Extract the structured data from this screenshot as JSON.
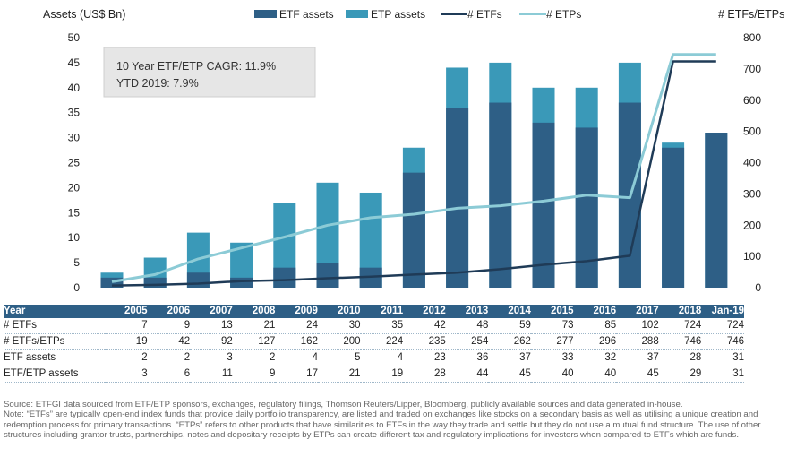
{
  "chart_data": {
    "type": "bar",
    "categories": [
      "2005",
      "2006",
      "2007",
      "2008",
      "2009",
      "2010",
      "2011",
      "2012",
      "2013",
      "2014",
      "2015",
      "2016",
      "2017",
      "2018",
      "Jan-19"
    ],
    "series": [
      {
        "name": "ETF assets",
        "kind": "bar",
        "axis": "left",
        "color": "#2e5f86",
        "values": [
          2,
          2,
          3,
          2,
          4,
          5,
          4,
          23,
          36,
          37,
          33,
          32,
          37,
          28,
          31
        ]
      },
      {
        "name": "ETP assets",
        "kind": "bar",
        "axis": "left",
        "color": "#3a99b8",
        "values": [
          3,
          6,
          11,
          9,
          17,
          21,
          19,
          28,
          44,
          45,
          40,
          40,
          45,
          29,
          31
        ]
      },
      {
        "name": "# ETFs",
        "kind": "line",
        "axis": "right",
        "color": "#1f3b57",
        "values": [
          7,
          9,
          13,
          21,
          24,
          30,
          35,
          42,
          48,
          59,
          73,
          85,
          102,
          724,
          724
        ]
      },
      {
        "name": "# ETPs",
        "kind": "line",
        "axis": "right",
        "color": "#8ccbd6",
        "values": [
          19,
          42,
          92,
          127,
          162,
          200,
          224,
          235,
          254,
          262,
          277,
          296,
          288,
          746,
          746
        ]
      }
    ],
    "ylabel": "Assets (US$ Bn)",
    "y2label": "# ETFs/ETPs",
    "ylim": [
      0,
      50
    ],
    "y2lim": [
      0,
      800
    ],
    "yticks": [
      0,
      5,
      10,
      15,
      20,
      25,
      30,
      35,
      40,
      45,
      50
    ],
    "y2ticks": [
      0,
      100,
      200,
      300,
      400,
      500,
      600,
      700,
      800
    ],
    "legend_position": "top",
    "grid": false,
    "annotation": [
      "10 Year ETF/ETP CAGR: 11.9%",
      "YTD 2019: 7.9%"
    ]
  },
  "table": {
    "header_label": "Year",
    "rows": [
      {
        "label": "# ETFs",
        "values": [
          "7",
          "9",
          "13",
          "21",
          "24",
          "30",
          "35",
          "42",
          "48",
          "59",
          "73",
          "85",
          "102",
          "724",
          "724"
        ]
      },
      {
        "label": "# ETFs/ETPs",
        "values": [
          "19",
          "42",
          "92",
          "127",
          "162",
          "200",
          "224",
          "235",
          "254",
          "262",
          "277",
          "296",
          "288",
          "746",
          "746"
        ]
      },
      {
        "label": "ETF assets",
        "values": [
          "2",
          "2",
          "3",
          "2",
          "4",
          "5",
          "4",
          "23",
          "36",
          "37",
          "33",
          "32",
          "37",
          "28",
          "31"
        ]
      },
      {
        "label": "ETF/ETP assets",
        "values": [
          "3",
          "6",
          "11",
          "9",
          "17",
          "21",
          "19",
          "28",
          "44",
          "45",
          "40",
          "40",
          "45",
          "29",
          "31"
        ]
      }
    ]
  },
  "footnote": {
    "source": "Source: ETFGI data sourced from ETF/ETP sponsors, exchanges, regulatory filings, Thomson Reuters/Lipper, Bloomberg, publicly available sources and data generated in-house.",
    "note": "Note: “ETFs” are typically open-end index funds that provide daily portfolio transparency, are listed and traded on exchanges like stocks on a secondary basis as well as utilising a unique creation and redemption process for primary transactions. “ETPs” refers to other products that have similarities to ETFs in the way they trade and settle but they do not use a mutual fund structure. The use of other structures including grantor trusts, partnerships, notes and depositary receipts by ETPs can create different tax and regulatory implications for investors when compared to ETFs which are funds."
  }
}
